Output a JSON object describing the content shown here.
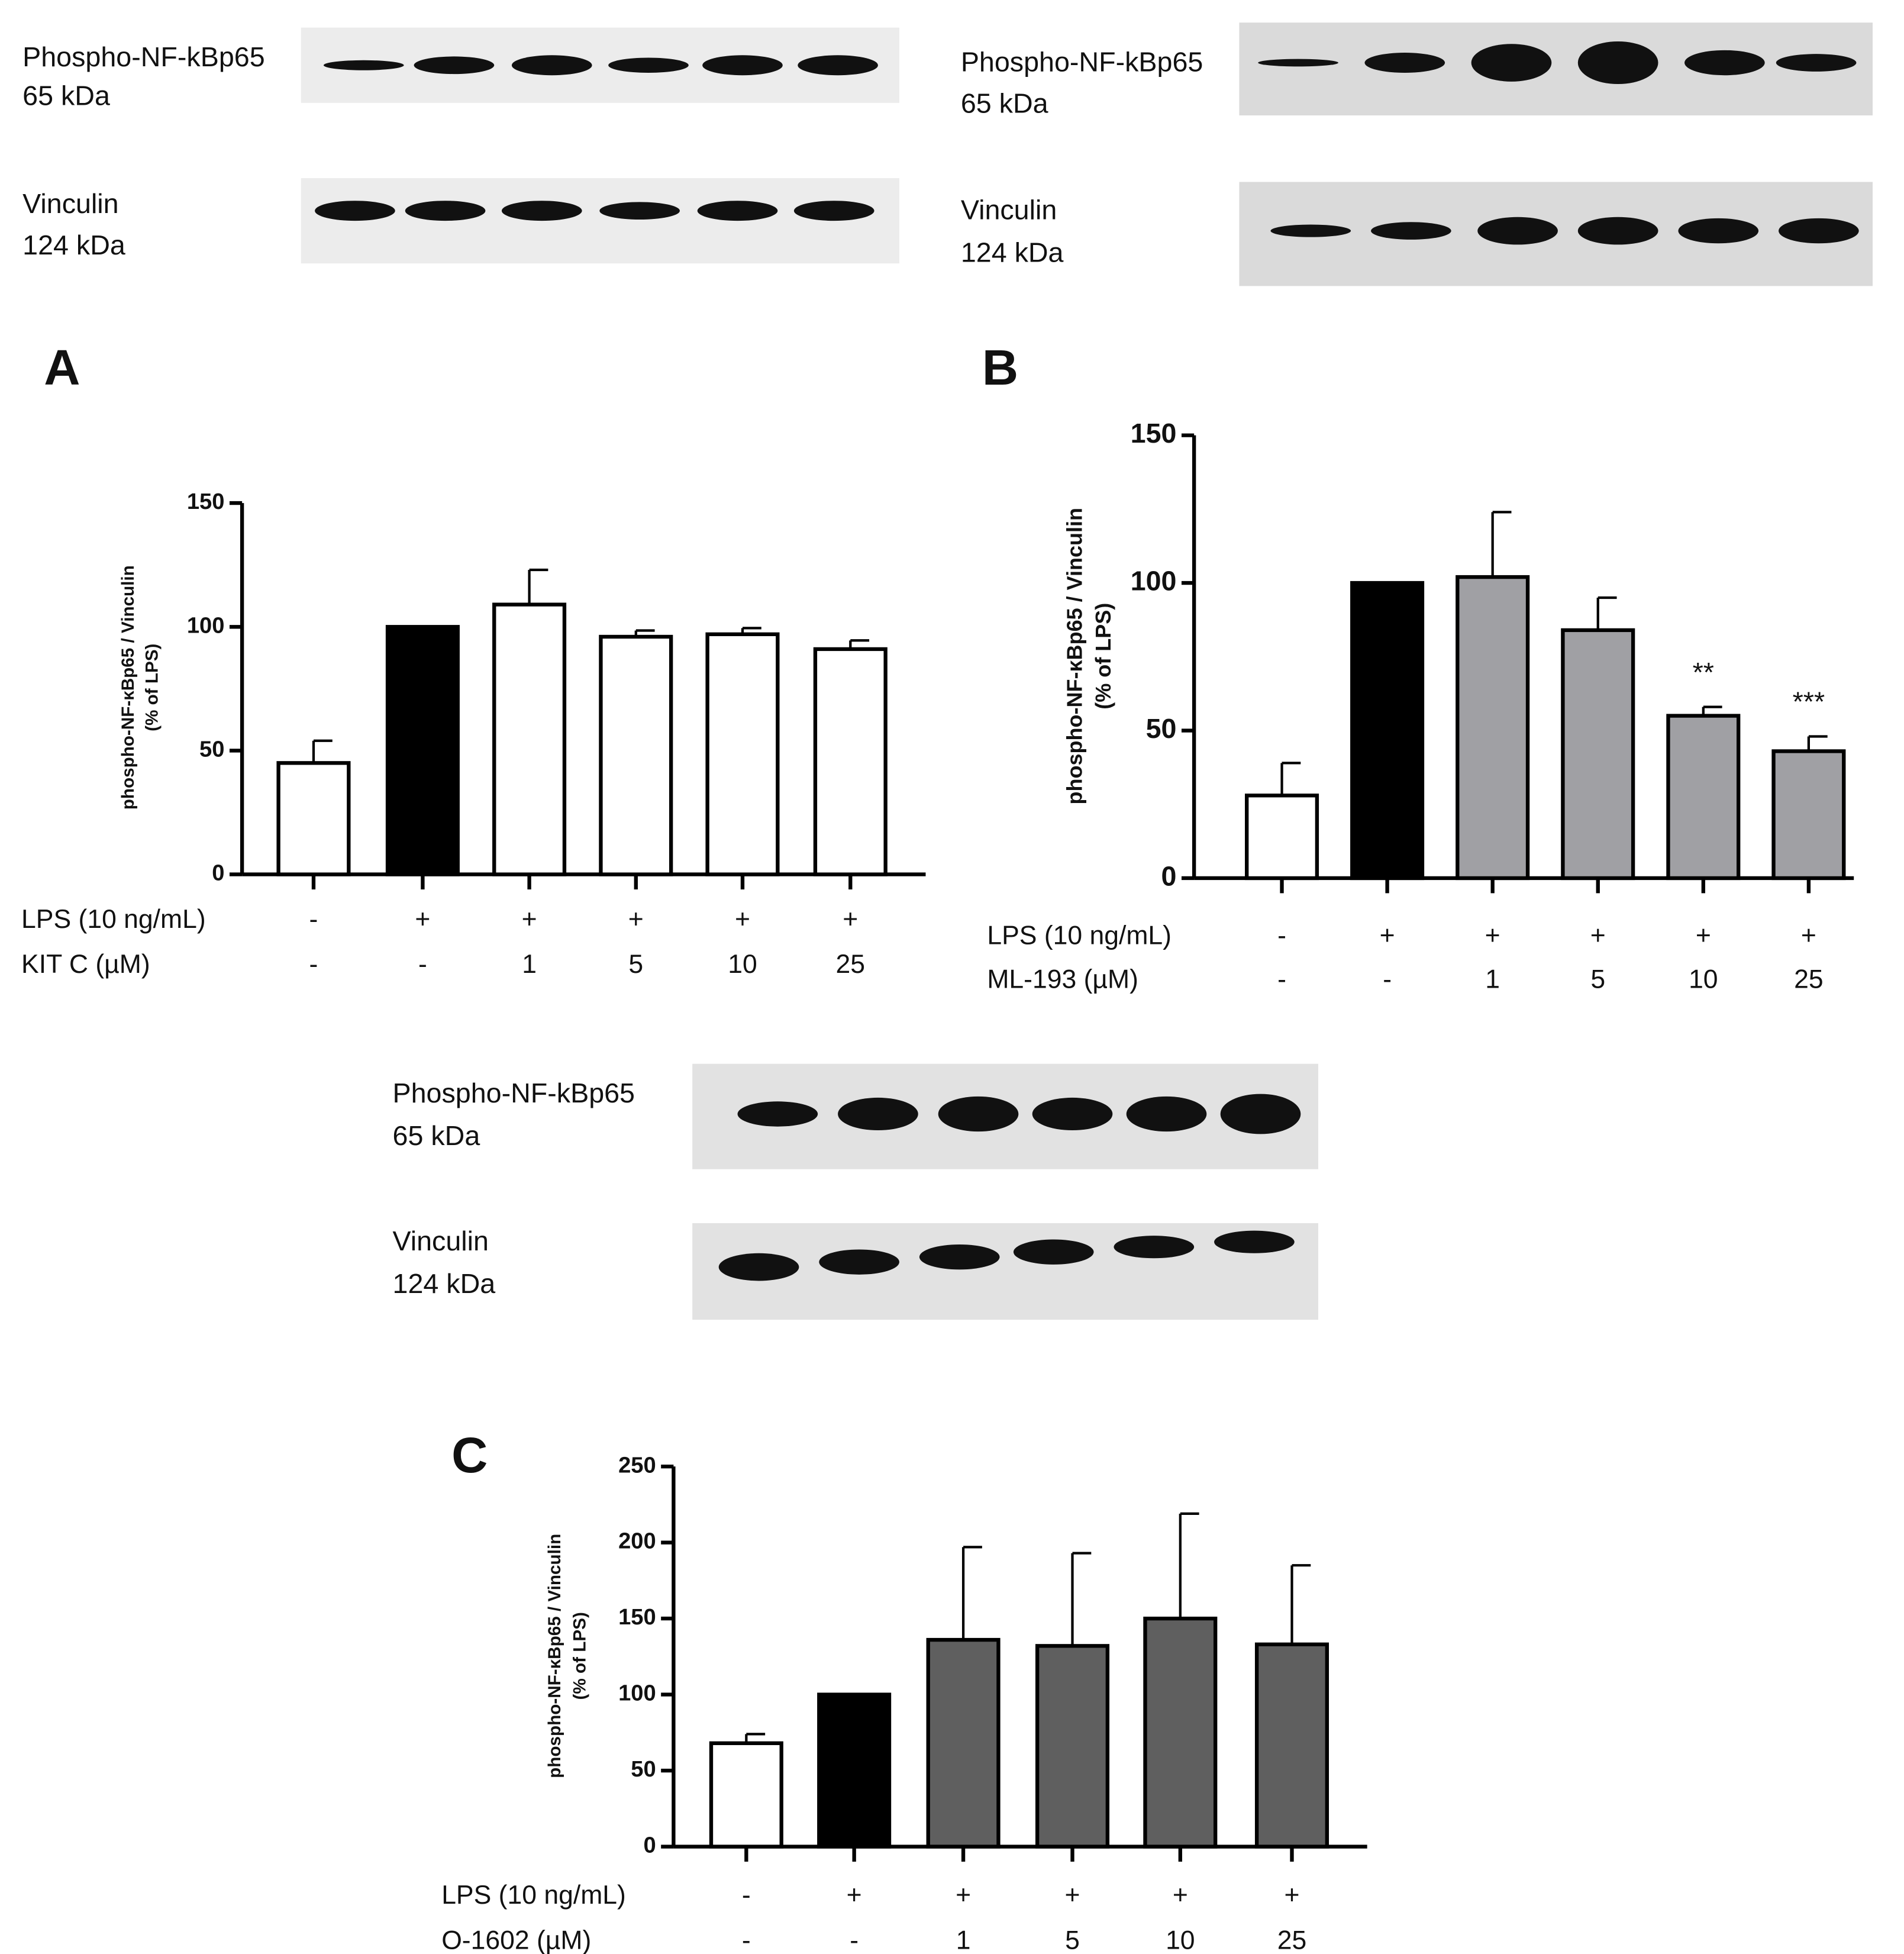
{
  "blots": [
    {
      "rows": [
        {
          "label": "Phospho-NF-kBp65",
          "size": "65 kDa"
        },
        {
          "label": "Vinculin",
          "size": "124 kDa"
        }
      ]
    },
    {
      "rows": [
        {
          "label": "Phospho-NF-kBp65",
          "size": "65 kDa"
        },
        {
          "label": "Vinculin",
          "size": "124 kDa"
        }
      ]
    },
    {
      "rows": [
        {
          "label": "Phospho-NF-kBp65",
          "size": "65 kDa"
        },
        {
          "label": "Vinculin",
          "size": "124 kDa"
        }
      ]
    }
  ],
  "chart_data": [
    {
      "type": "bar",
      "panel": "A",
      "ylabel": [
        "phospho-NF-κBp65 / Vinculin",
        "(% of LPS)"
      ],
      "row_labels": [
        "LPS (10 ng/mL)",
        "KIT C (µM)"
      ],
      "lps": [
        "-",
        "+",
        "+",
        "+",
        "+",
        "+"
      ],
      "categories": [
        "-",
        "-",
        "1",
        "5",
        "10",
        "25"
      ],
      "values": [
        45,
        100,
        109,
        96,
        97,
        91
      ],
      "errors": [
        9,
        0,
        14,
        2.5,
        2.5,
        3.5
      ],
      "colors": [
        "#ffffff",
        "#000000",
        "#ffffff",
        "#ffffff",
        "#ffffff",
        "#ffffff"
      ],
      "ylim": [
        0,
        150
      ],
      "yticks": [
        0,
        50,
        100,
        150
      ]
    },
    {
      "type": "bar",
      "panel": "B",
      "ylabel": [
        "phospho-NF-κBp65 / Vinculin",
        "(% of LPS)"
      ],
      "row_labels": [
        "LPS (10 ng/mL)",
        "ML-193 (µM)"
      ],
      "lps": [
        "-",
        "+",
        "+",
        "+",
        "+",
        "+"
      ],
      "categories": [
        "-",
        "-",
        "1",
        "5",
        "10",
        "25"
      ],
      "values": [
        28,
        100,
        102,
        84,
        55,
        43
      ],
      "errors": [
        11,
        0,
        22,
        11,
        3,
        5
      ],
      "colors": [
        "#ffffff",
        "#000000",
        "#a0a0a4",
        "#a0a0a4",
        "#a0a0a4",
        "#a0a0a4"
      ],
      "annotations": [
        null,
        null,
        null,
        null,
        "**",
        "***"
      ],
      "ylim": [
        0,
        150
      ],
      "yticks": [
        0,
        50,
        100,
        150
      ]
    },
    {
      "type": "bar",
      "panel": "C",
      "ylabel": [
        "phospho-NF-κBp65 / Vinculin",
        "(% of LPS)"
      ],
      "row_labels": [
        "LPS (10 ng/mL)",
        "O-1602 (µM)"
      ],
      "lps": [
        "-",
        "+",
        "+",
        "+",
        "+",
        "+"
      ],
      "categories": [
        "-",
        "-",
        "1",
        "5",
        "10",
        "25"
      ],
      "values": [
        68,
        100,
        136,
        132,
        150,
        133
      ],
      "errors": [
        6,
        0,
        61,
        61,
        69,
        52
      ],
      "colors": [
        "#ffffff",
        "#000000",
        "#5f5f5f",
        "#5f5f5f",
        "#5f5f5f",
        "#5f5f5f"
      ],
      "ylim": [
        0,
        250
      ],
      "yticks": [
        0,
        50,
        100,
        150,
        200,
        250
      ]
    }
  ]
}
